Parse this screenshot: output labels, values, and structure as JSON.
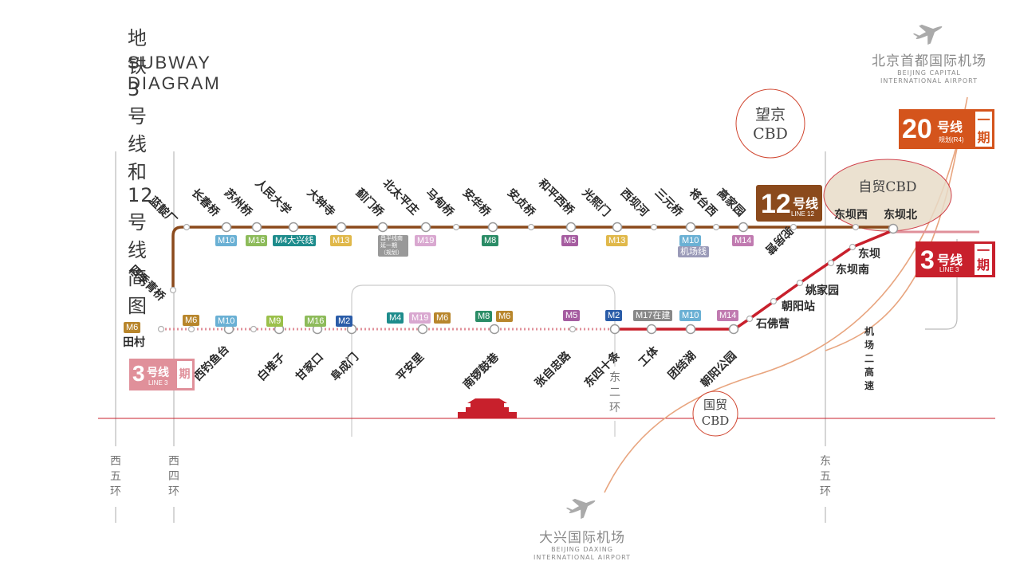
{
  "title": {
    "zh": "地铁3号线和12号线简图",
    "en": "SUBWAY DIAGRAM"
  },
  "colors": {
    "line12": "#8b4a1c",
    "line3": "#c8202c",
    "line3_planned": "#e0909a",
    "line20": "#d4541c",
    "airport_link": "#e8a57f",
    "ring_road": "#bbbbbb",
    "boundary": "#c8202c"
  },
  "line12": {
    "badge": {
      "num": "12",
      "hao": "号线",
      "en": "LINE 12"
    },
    "stations": [
      "四季青桥",
      "蓝靛厂",
      "长春桥",
      "苏州桥",
      "人民大学",
      "大钟寺",
      "蓟门桥",
      "北太平庄",
      "马甸桥",
      "安华桥",
      "安贞桥",
      "和平西桥",
      "光熙门",
      "西坝河",
      "三元桥",
      "将台西",
      "高家园",
      "驼房营",
      "东坝西",
      "东坝北"
    ],
    "transfers": [
      {
        "text": "M10",
        "color": "#6ab0d4"
      },
      {
        "text": "M16",
        "color": "#8dbb5a"
      },
      {
        "text": "M4大兴线",
        "color": "#1e8c8c"
      },
      {
        "text": "M13",
        "color": "#e0b84a"
      },
      {
        "text": "昌平线南延一期（规划）",
        "color": "#999999"
      },
      {
        "text": "M19",
        "color": "#d9a8d0"
      },
      {
        "text": "M8",
        "color": "#2a8c66"
      },
      {
        "text": "M5",
        "color": "#a55ca0"
      },
      {
        "text": "M13",
        "color": "#e0b84a"
      },
      {
        "text": "M10",
        "color": "#6ab0d4"
      },
      {
        "text": "机场线",
        "color": "#9a9ab8"
      },
      {
        "text": "M14",
        "color": "#c07ab0"
      }
    ]
  },
  "line3": {
    "badge": {
      "num": "3",
      "hao": "号线",
      "en": "LINE 3",
      "phase": "一期"
    },
    "planned_badge": {
      "num": "3",
      "hao": "号线",
      "en": "LINE 3",
      "phase": "期"
    },
    "stations": [
      "田村",
      "西钓鱼台",
      "白堆子",
      "甘家口",
      "阜成门",
      "平安里",
      "南锣鼓巷",
      "张自忠路",
      "东四十条",
      "工体",
      "团结湖",
      "朝阳公园",
      "石佛营",
      "朝阳站",
      "姚家园",
      "东坝南",
      "东坝"
    ],
    "transfers": [
      {
        "text": "M6",
        "color": "#b8862c"
      },
      {
        "text": "M6",
        "color": "#b8862c"
      },
      {
        "text": "M10",
        "color": "#6ab0d4"
      },
      {
        "text": "M9",
        "color": "#9bc04a"
      },
      {
        "text": "M16",
        "color": "#8dbb5a"
      },
      {
        "text": "M2",
        "color": "#2a5ca8"
      },
      {
        "text": "M4",
        "color": "#1e8c8c"
      },
      {
        "text": "M19",
        "color": "#d9a8d0"
      },
      {
        "text": "M6",
        "color": "#b8862c"
      },
      {
        "text": "M8",
        "color": "#2a8c66"
      },
      {
        "text": "M6",
        "color": "#b8862c"
      },
      {
        "text": "M5",
        "color": "#a55ca0"
      },
      {
        "text": "M2",
        "color": "#2a5ca8"
      },
      {
        "text": "M17在建",
        "color": "#888888"
      },
      {
        "text": "M10",
        "color": "#6ab0d4"
      },
      {
        "text": "M14",
        "color": "#c07ab0"
      }
    ]
  },
  "line20": {
    "badge": {
      "num": "20",
      "hao": "号线",
      "sub": "规划(R4)",
      "phase": "一期"
    }
  },
  "cbd": {
    "wangjing": [
      "望京",
      "CBD"
    ],
    "ziyou": "自贸CBD",
    "guomao": [
      "国贸",
      "CBD"
    ]
  },
  "airports": {
    "capital": {
      "zh": "北京首都国际机场",
      "en1": "BEIJING CAPITAL",
      "en2": "INTERNATIONAL AIRPORT"
    },
    "daxing": {
      "zh": "大兴国际机场",
      "en1": "BEIJING DAXING",
      "en2": "INTERNATIONAL AIRPORT"
    }
  },
  "rings": {
    "west5": [
      "西",
      "五",
      "环"
    ],
    "west4": [
      "西",
      "四",
      "环"
    ],
    "east2": [
      "东",
      "二",
      "环"
    ],
    "east5": [
      "东",
      "五",
      "环"
    ]
  },
  "expressway": "机场二高速"
}
